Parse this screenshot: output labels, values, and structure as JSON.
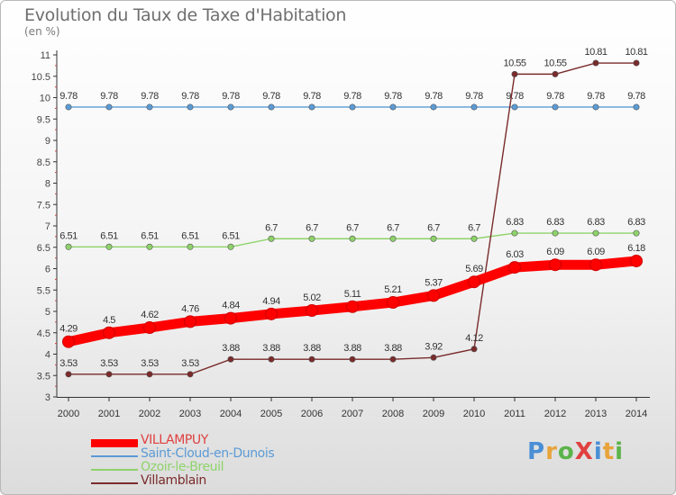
{
  "title": "Evolution du Taux de Taxe d'Habitation",
  "unit_label": "(en %)",
  "brand": "ProXiti",
  "chart_data": {
    "type": "line",
    "title": "Evolution du Taux de Taxe d'Habitation",
    "ylabel": "(en %)",
    "xlabel": "",
    "categories": [
      "2000",
      "2001",
      "2002",
      "2003",
      "2004",
      "2005",
      "2006",
      "2007",
      "2008",
      "2009",
      "2010",
      "2011",
      "2012",
      "2013",
      "2014"
    ],
    "ylim": [
      3,
      11
    ],
    "yticks": [
      3,
      3.5,
      4,
      4.5,
      5,
      5.5,
      6,
      6.5,
      7,
      7.5,
      8,
      8.5,
      9,
      9.5,
      10,
      10.5,
      11
    ],
    "ytick_labels": [
      "3",
      "3.5",
      "4",
      "4.5",
      "5",
      "5.5",
      "6",
      "6.5",
      "7",
      "7.5",
      "8",
      "8.5",
      "9",
      "9.5",
      "10",
      "10.5",
      "11"
    ],
    "grid": false,
    "legend_position": "bottom-left",
    "series": [
      {
        "name": "VILLAMPUY",
        "color": "#ff0000",
        "values": [
          4.29,
          4.5,
          4.62,
          4.76,
          4.84,
          4.94,
          5.02,
          5.11,
          5.21,
          5.37,
          5.69,
          6.03,
          6.09,
          6.09,
          6.18
        ],
        "labels": [
          "4.29",
          "4.5",
          "4.62",
          "4.76",
          "4.84",
          "4.94",
          "5.02",
          "5.11",
          "5.21",
          "5.37",
          "5.69",
          "6.03",
          "6.09",
          "6.09",
          "6.18"
        ]
      },
      {
        "name": "Saint-Cloud-en-Dunois",
        "color": "#5b9bd5",
        "values": [
          9.78,
          9.78,
          9.78,
          9.78,
          9.78,
          9.78,
          9.78,
          9.78,
          9.78,
          9.78,
          9.78,
          9.78,
          9.78,
          9.78,
          9.78
        ],
        "labels": [
          "9.78",
          "9.78",
          "9.78",
          "9.78",
          "9.78",
          "9.78",
          "9.78",
          "9.78",
          "9.78",
          "9.78",
          "9.78",
          "9.78",
          "9.78",
          "9.78",
          "9.78"
        ]
      },
      {
        "name": "Ozoir-le-Breuil",
        "color": "#8ed36a",
        "values": [
          6.51,
          6.51,
          6.51,
          6.51,
          6.51,
          6.7,
          6.7,
          6.7,
          6.7,
          6.7,
          6.7,
          6.83,
          6.83,
          6.83,
          6.83
        ],
        "labels": [
          "6.51",
          "6.51",
          "6.51",
          "6.51",
          "6.51",
          "6.7",
          "6.7",
          "6.7",
          "6.7",
          "6.7",
          "6.7",
          "6.83",
          "6.83",
          "6.83",
          "6.83"
        ]
      },
      {
        "name": "Villamblain",
        "color": "#7a2b2b",
        "values": [
          3.53,
          3.53,
          3.53,
          3.53,
          3.88,
          3.88,
          3.88,
          3.88,
          3.88,
          3.92,
          4.12,
          10.55,
          10.55,
          10.81,
          10.81
        ],
        "labels": [
          "3.53",
          "3.53",
          "3.53",
          "3.53",
          "3.88",
          "3.88",
          "3.88",
          "3.88",
          "3.88",
          "3.92",
          "4.12",
          "10.55",
          "10.55",
          "10.81",
          "10.81"
        ]
      }
    ]
  }
}
